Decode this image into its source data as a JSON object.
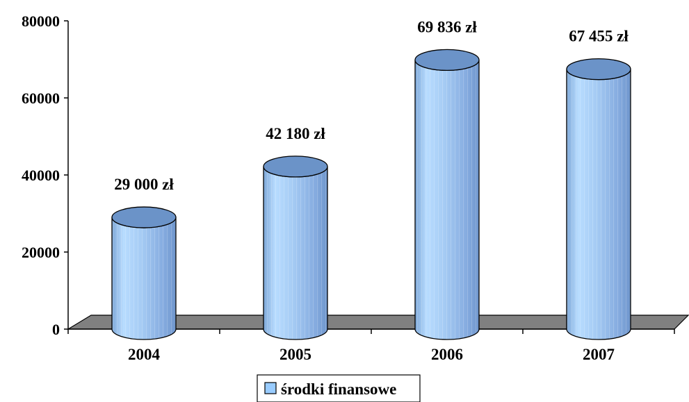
{
  "chart_data": {
    "type": "bar",
    "style": "3d-cylinder",
    "categories": [
      "2004",
      "2005",
      "2006",
      "2007"
    ],
    "series": [
      {
        "name": "środki finansowe",
        "values": [
          29000,
          42180,
          69836,
          67455
        ],
        "data_labels": [
          "29 000 zł",
          "42 180 zł",
          "69 836 zł",
          "67 455 zł"
        ],
        "color": "#99ccff"
      }
    ],
    "yticks": [
      "0",
      "20000",
      "40000",
      "60000",
      "80000"
    ],
    "ylim": [
      0,
      80000
    ],
    "grid": false,
    "floor_color": "#808080",
    "legend_position": "bottom"
  }
}
